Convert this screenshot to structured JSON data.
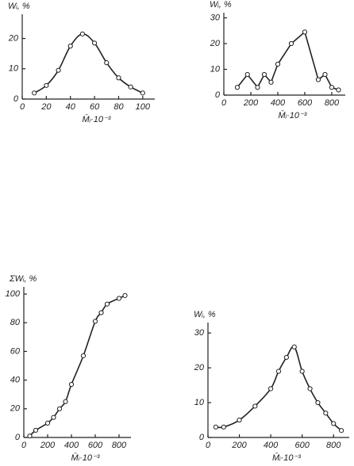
{
  "chart_data": [
    {
      "type": "line",
      "smooth": true,
      "y_label": "Wᵢ, %",
      "x_label": "M̄ᵢ·10⁻³",
      "x": [
        10,
        20,
        30,
        40,
        50,
        60,
        70,
        80,
        90,
        100
      ],
      "values": [
        2,
        4.5,
        9.5,
        17.5,
        21.5,
        18.5,
        12,
        7,
        4,
        2
      ],
      "xlim": [
        0,
        110
      ],
      "ylim": [
        0,
        28
      ],
      "xticks": [
        0,
        20,
        40,
        60,
        80,
        100
      ],
      "yticks": [
        0,
        10,
        20
      ],
      "color": "#222222"
    },
    {
      "type": "line",
      "smooth": false,
      "y_label": "Wᵢ, %",
      "x_label": "M̄ᵢ·10⁻³",
      "x": [
        100,
        175,
        250,
        300,
        350,
        400,
        500,
        600,
        700,
        750,
        800,
        850
      ],
      "values": [
        3,
        8,
        3,
        8,
        5,
        12,
        20,
        24.5,
        6,
        8,
        3,
        2
      ],
      "xlim": [
        0,
        900
      ],
      "ylim": [
        0,
        32
      ],
      "xticks": [
        0,
        200,
        400,
        600,
        800
      ],
      "yticks": [
        0,
        10,
        20,
        30
      ],
      "color": "#222222"
    },
    {
      "type": "line",
      "smooth": true,
      "y_label": "ΣWᵢ, %",
      "x_label": "M̄ᵢ·10⁻³",
      "x": [
        50,
        100,
        200,
        250,
        300,
        350,
        400,
        500,
        600,
        650,
        700,
        800,
        850
      ],
      "values": [
        1,
        5,
        10,
        14,
        20,
        25,
        37,
        57,
        81,
        87,
        93,
        97,
        99
      ],
      "xlim": [
        0,
        900
      ],
      "ylim": [
        0,
        105
      ],
      "xticks": [
        0,
        200,
        400,
        600,
        800
      ],
      "yticks": [
        0,
        20,
        40,
        60,
        80,
        100
      ],
      "color": "#222222"
    },
    {
      "type": "line",
      "smooth": true,
      "y_label": "Wᵢ, %",
      "x_label": "M̄ᵢ·10⁻³",
      "x": [
        50,
        100,
        200,
        300,
        400,
        450,
        500,
        550,
        600,
        650,
        700,
        750,
        800,
        850
      ],
      "values": [
        3,
        3,
        5,
        9,
        14,
        19,
        23,
        26,
        19,
        14,
        10,
        7,
        4,
        2
      ],
      "xlim": [
        0,
        900
      ],
      "ylim": [
        0,
        33
      ],
      "xticks": [
        0,
        200,
        400,
        600,
        800
      ],
      "yticks": [
        0,
        10,
        20,
        30
      ],
      "color": "#222222"
    }
  ]
}
